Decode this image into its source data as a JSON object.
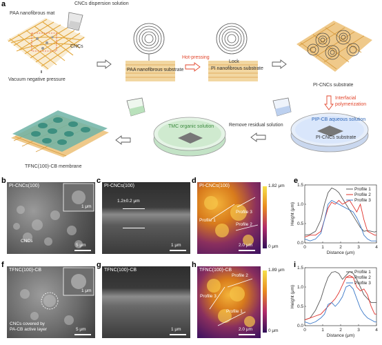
{
  "panel_a": {
    "letter": "a",
    "labels": {
      "paa_mat": "PAA nanofibrous mat",
      "cncs_dispersion": "CNCs dispersion solution",
      "cncs": "CNCs",
      "vacuum": "Vacuum negative pressure",
      "paa_substrate": "PAA nanofibrous substrate",
      "hot_pressing": "Hot-pressing",
      "lock": "Lock",
      "pi_substrate": "PI nanofibrous substrate",
      "pi_cncs_substrate": "PI-CNCs substrate",
      "interfacial": "Interfacial polymerization",
      "pip_cb": "PIP-CB aqueous solution",
      "pi_cncs_dish": "PI-CNCs substrate",
      "remove": "Remove residual solution",
      "tmc": "TMC organic solution",
      "tfnc_membrane": "TFNC(100)-CB membrane"
    }
  },
  "panel_b": {
    "letter": "b",
    "title": "PI-CNCs(100)",
    "inset_scale": "1 μm",
    "scale": "5 μm",
    "annotation": "CNCs"
  },
  "panel_c": {
    "letter": "c",
    "title": "PI-CNCs(100)",
    "thickness": "1.2±0.2 μm",
    "scale": "1 μm"
  },
  "panel_d": {
    "letter": "d",
    "title": "PI-CNCs(100)",
    "cb_max": "1.82 μm",
    "cb_min": "0 μm",
    "scale": "2.0 μm",
    "profiles": [
      "Profile 1",
      "Profile 2",
      "Profile 3"
    ]
  },
  "panel_e": {
    "letter": "e",
    "chart_data": {
      "type": "line",
      "xlabel": "Distance (μm)",
      "ylabel": "Height (μm)",
      "xlim": [
        0,
        4
      ],
      "ylim": [
        0,
        1.5
      ],
      "xticks": [
        0,
        1,
        2,
        3,
        4
      ],
      "yticks": [
        0.0,
        0.5,
        1.0,
        1.5
      ],
      "legend": "top-right",
      "series": [
        {
          "name": "Profile 1",
          "color": "#555555",
          "x": [
            0,
            0.3,
            0.6,
            0.9,
            1.1,
            1.3,
            1.5,
            1.7,
            1.9,
            2.1,
            2.3,
            2.5,
            2.7,
            2.9,
            3.1,
            3.3,
            3.5,
            3.7,
            3.9,
            4.0
          ],
          "y": [
            0.2,
            0.22,
            0.3,
            0.6,
            1.0,
            1.3,
            1.42,
            1.38,
            1.3,
            1.15,
            1.0,
            0.85,
            0.7,
            0.55,
            0.4,
            0.3,
            0.32,
            0.3,
            0.28,
            0.3
          ]
        },
        {
          "name": "Profile 2",
          "color": "#e0302a",
          "x": [
            0,
            0.3,
            0.6,
            0.9,
            1.1,
            1.3,
            1.5,
            1.7,
            1.9,
            2.1,
            2.3,
            2.5,
            2.7,
            2.9,
            3.1,
            3.3,
            3.5,
            3.7,
            3.9,
            4.0
          ],
          "y": [
            0.15,
            0.2,
            0.2,
            0.3,
            0.6,
            0.9,
            1.05,
            1.0,
            1.1,
            1.0,
            1.05,
            1.1,
            0.95,
            0.8,
            1.0,
            0.6,
            0.3,
            0.25,
            0.2,
            0.2
          ]
        },
        {
          "name": "Profile 3",
          "color": "#3a78c8",
          "x": [
            0,
            0.3,
            0.6,
            0.9,
            1.1,
            1.3,
            1.5,
            1.7,
            1.9,
            2.1,
            2.3,
            2.5,
            2.7,
            2.9,
            3.1,
            3.3,
            3.5,
            3.7,
            3.9,
            4.0
          ],
          "y": [
            0.1,
            0.05,
            0.1,
            0.25,
            0.6,
            1.0,
            1.1,
            1.05,
            1.0,
            0.95,
            0.9,
            0.85,
            0.8,
            0.65,
            0.45,
            0.2,
            0.1,
            0.05,
            0.05,
            0.05
          ]
        }
      ]
    }
  },
  "panel_f": {
    "letter": "f",
    "title": "TFNC(100)-CB",
    "inset_scale": "1 μm",
    "scale": "5 μm",
    "annotation_line1": "CNCs covered by",
    "annotation_line2": "PA-CB active layer"
  },
  "panel_g": {
    "letter": "g",
    "title": "TFNC(100)-CB",
    "scale": "1 μm"
  },
  "panel_h": {
    "letter": "h",
    "title": "TFNC(100)-CB",
    "cb_max": "1.89 μm",
    "cb_min": "0 μm",
    "scale": "2.0 μm",
    "profiles": [
      "Profile 1",
      "Profile 2",
      "Profile 3"
    ]
  },
  "panel_i": {
    "letter": "i",
    "chart_data": {
      "type": "line",
      "xlabel": "Distance (μm)",
      "ylabel": "Height (μm)",
      "xlim": [
        0,
        4
      ],
      "ylim": [
        0,
        1.5
      ],
      "xticks": [
        0,
        1,
        2,
        3,
        4
      ],
      "yticks": [
        0.0,
        0.5,
        1.0,
        1.5
      ],
      "legend": "top-right",
      "series": [
        {
          "name": "Profile 1",
          "color": "#555555",
          "x": [
            0,
            0.3,
            0.6,
            0.9,
            1.1,
            1.3,
            1.5,
            1.7,
            1.9,
            2.1,
            2.3,
            2.5,
            2.7,
            2.9,
            3.1,
            3.3,
            3.5,
            3.7,
            3.9,
            4.0
          ],
          "y": [
            0.15,
            0.2,
            0.4,
            0.7,
            1.0,
            1.25,
            1.38,
            1.4,
            1.35,
            1.2,
            1.3,
            1.4,
            1.35,
            1.2,
            1.0,
            0.8,
            0.7,
            0.6,
            0.6,
            0.6
          ]
        },
        {
          "name": "Profile 2",
          "color": "#e0302a",
          "x": [
            0,
            0.3,
            0.6,
            0.9,
            1.1,
            1.3,
            1.5,
            1.7,
            1.9,
            2.1,
            2.3,
            2.5,
            2.7,
            2.9,
            3.1,
            3.3,
            3.5,
            3.7,
            3.9,
            4.0
          ],
          "y": [
            0.15,
            0.2,
            0.25,
            0.3,
            0.4,
            0.5,
            0.6,
            0.7,
            0.85,
            1.05,
            1.25,
            1.3,
            1.25,
            1.0,
            0.9,
            0.95,
            0.8,
            0.5,
            0.3,
            0.3
          ]
        },
        {
          "name": "Profile 3",
          "color": "#3a78c8",
          "x": [
            0,
            0.3,
            0.6,
            0.9,
            1.1,
            1.3,
            1.5,
            1.7,
            1.9,
            2.1,
            2.3,
            2.5,
            2.7,
            2.9,
            3.1,
            3.3,
            3.5,
            3.7,
            3.9,
            4.0
          ],
          "y": [
            0.1,
            0.05,
            0.1,
            0.2,
            0.3,
            0.55,
            0.6,
            0.5,
            0.6,
            0.75,
            1.0,
            1.05,
            0.95,
            0.7,
            0.45,
            0.3,
            0.2,
            0.15,
            0.1,
            0.1
          ]
        }
      ]
    }
  }
}
